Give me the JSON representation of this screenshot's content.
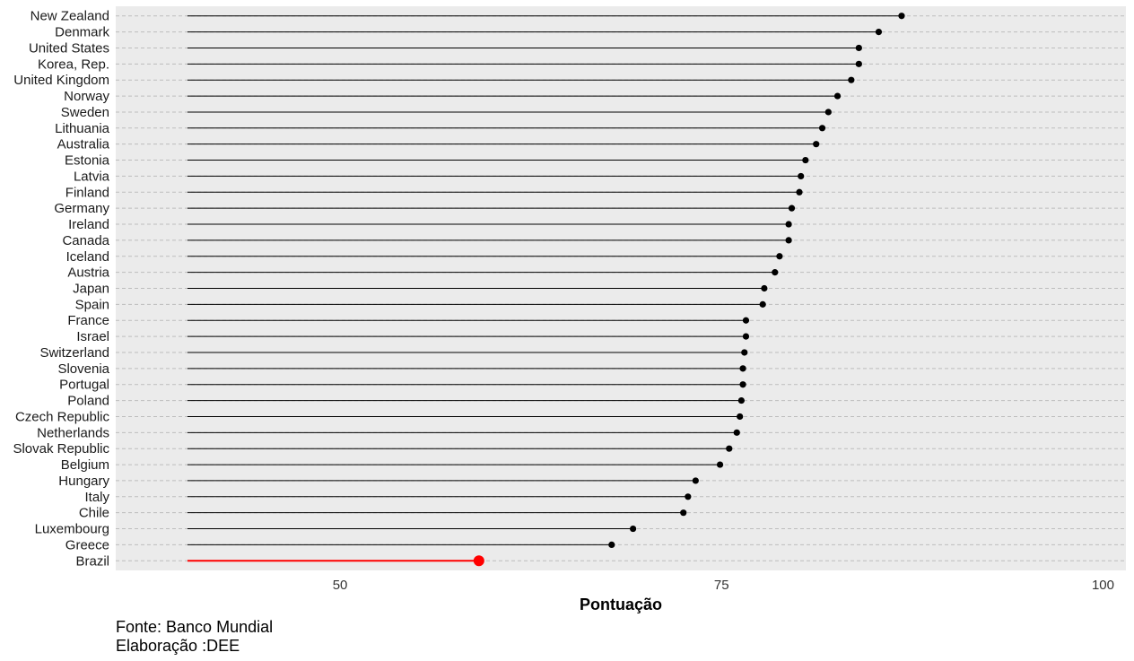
{
  "chart_data": {
    "type": "lollipop",
    "title": "",
    "xlabel": "Pontuação",
    "ylabel": "",
    "xlim": [
      35.3,
      101.5
    ],
    "x_baseline": 40,
    "x_ticks": [
      50,
      75,
      100
    ],
    "grid": "horizontal dashed",
    "legend": "none",
    "colors": {
      "panel_background": "#EBEBEB",
      "grid": "#BDBDBD",
      "default": "#000000",
      "highlight": "#FF0000"
    },
    "highlight": "Brazil",
    "categories": [
      "New Zealand",
      "Denmark",
      "United States",
      "Korea, Rep.",
      "United Kingdom",
      "Norway",
      "Sweden",
      "Lithuania",
      "Australia",
      "Estonia",
      "Latvia",
      "Finland",
      "Germany",
      "Ireland",
      "Canada",
      "Iceland",
      "Austria",
      "Japan",
      "Spain",
      "France",
      "Israel",
      "Switzerland",
      "Slovenia",
      "Portugal",
      "Poland",
      "Czech Republic",
      "Netherlands",
      "Slovak Republic",
      "Belgium",
      "Hungary",
      "Italy",
      "Chile",
      "Luxembourg",
      "Greece",
      "Brazil"
    ],
    "values": [
      86.8,
      85.3,
      84.0,
      84.0,
      83.5,
      82.6,
      82.0,
      81.6,
      81.2,
      80.5,
      80.2,
      80.1,
      79.6,
      79.4,
      79.4,
      78.8,
      78.5,
      77.8,
      77.7,
      76.6,
      76.6,
      76.5,
      76.4,
      76.4,
      76.3,
      76.2,
      76.0,
      75.5,
      74.9,
      73.3,
      72.8,
      72.5,
      69.2,
      67.8,
      59.1
    ]
  },
  "caption": {
    "line1": "Fonte: Banco Mundial",
    "line2": "Elaboração :DEE"
  }
}
